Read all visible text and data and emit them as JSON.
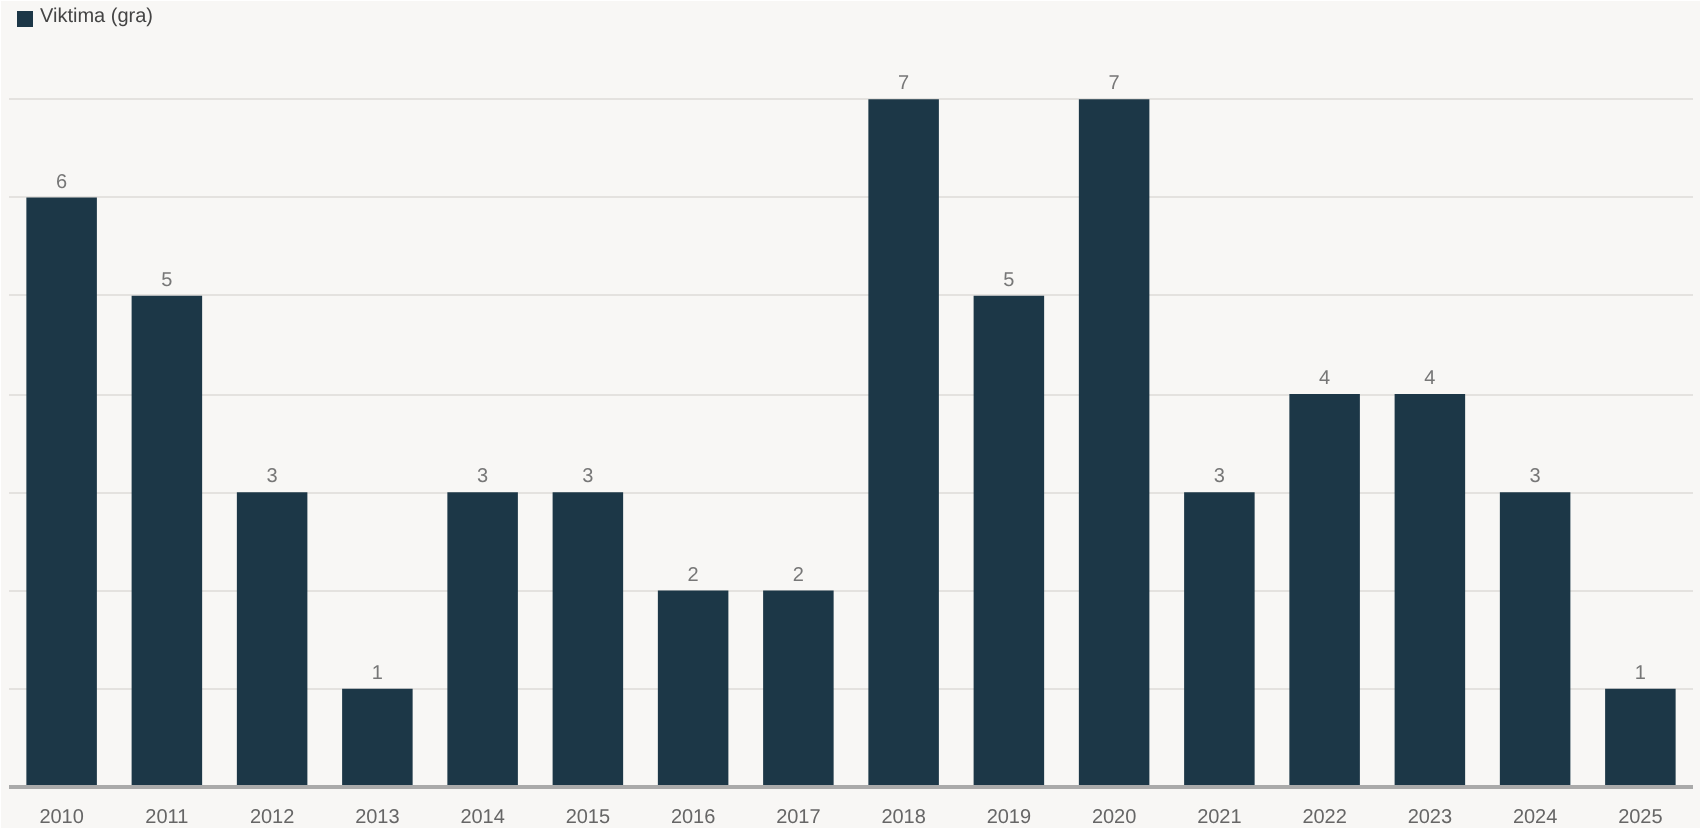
{
  "chart_data": {
    "type": "bar",
    "categories": [
      "2010",
      "2011",
      "2012",
      "2013",
      "2014",
      "2015",
      "2016",
      "2017",
      "2018",
      "2019",
      "2020",
      "2021",
      "2022",
      "2023",
      "2024",
      "2025"
    ],
    "series": [
      {
        "name": "Viktima (gra)",
        "color": "#1c3747",
        "values": [
          6,
          5,
          3,
          1,
          3,
          3,
          2,
          2,
          7,
          5,
          7,
          3,
          4,
          4,
          3,
          1
        ]
      }
    ],
    "ylim": [
      0,
      8
    ],
    "yticks": [
      {
        "value": 1,
        "label": null
      },
      {
        "value": 2,
        "label": null
      },
      {
        "value": 3,
        "label": null
      },
      {
        "value": 4,
        "label": null
      },
      {
        "value": 5,
        "label": null
      },
      {
        "value": 6,
        "label": null
      },
      {
        "value": 7,
        "label": null
      }
    ],
    "grid": "y",
    "legend": "top left",
    "data_labels": true,
    "tick_labels": "x"
  }
}
